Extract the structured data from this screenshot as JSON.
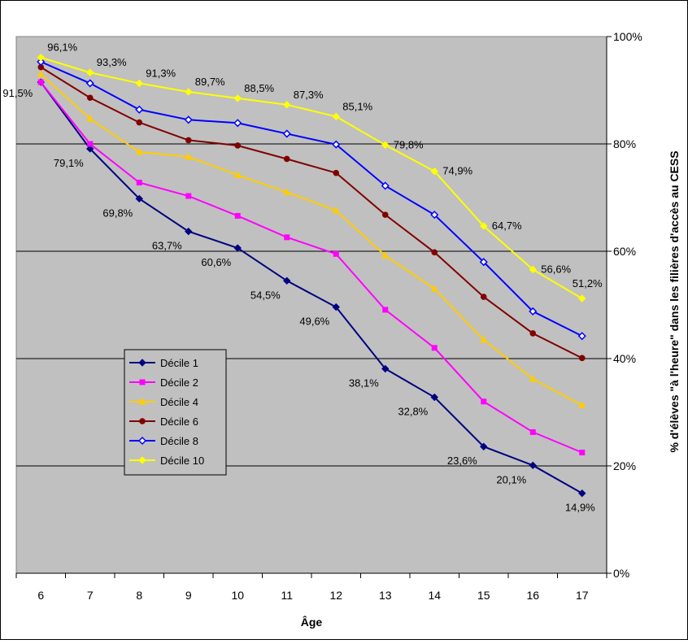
{
  "chart_data": {
    "type": "line",
    "title": "",
    "xlabel": "Âge",
    "ylabel": "% d'élèves \"à l'heure\" dans les filières d'accès au CESS",
    "x": [
      6,
      7,
      8,
      9,
      10,
      11,
      12,
      13,
      14,
      15,
      16,
      17
    ],
    "x_tick_labels": [
      "6",
      "7",
      "8",
      "9",
      "10",
      "11",
      "12",
      "13",
      "14",
      "15",
      "16",
      "17"
    ],
    "ylim": [
      0,
      100
    ],
    "y_tick_labels": [
      "0%",
      "20%",
      "40%",
      "60%",
      "80%",
      "100%"
    ],
    "y_axis_side": "right",
    "grid": true,
    "legend_position": "lower-left",
    "series": [
      {
        "name": "Décile 1",
        "color": "#000080",
        "marker": "diamond",
        "values": [
          91.5,
          79.1,
          69.8,
          63.7,
          60.6,
          54.5,
          49.6,
          38.1,
          32.8,
          23.6,
          20.1,
          14.9
        ],
        "labels": [
          "91,5%",
          "79,1%",
          "69,8%",
          "63,7%",
          "60,6%",
          "54,5%",
          "49,6%",
          "38,1%",
          "32,8%",
          "23,6%",
          "20,1%",
          "14,9%"
        ]
      },
      {
        "name": "Décile 2",
        "color": "#FF00FF",
        "marker": "square",
        "values": [
          91.5,
          80.0,
          72.8,
          70.3,
          66.6,
          62.6,
          59.5,
          49.1,
          42.0,
          32.0,
          26.3,
          22.5
        ]
      },
      {
        "name": "Décile 4",
        "color": "#FFCC00",
        "marker": "triangle",
        "values": [
          93.0,
          84.7,
          78.5,
          77.6,
          74.2,
          71.0,
          67.6,
          59.2,
          53.0,
          43.5,
          36.2,
          31.3
        ]
      },
      {
        "name": "Décile 6",
        "color": "#800000",
        "marker": "circle",
        "values": [
          94.3,
          88.6,
          84.0,
          80.7,
          79.7,
          77.2,
          74.6,
          66.8,
          59.8,
          51.5,
          44.7,
          40.1
        ]
      },
      {
        "name": "Décile 8",
        "color": "#0000FF",
        "marker": "diamond-open",
        "values": [
          95.3,
          91.3,
          86.4,
          84.5,
          83.9,
          81.9,
          79.9,
          72.2,
          66.8,
          58.0,
          48.8,
          44.2
        ]
      },
      {
        "name": "Décile 10",
        "color": "#FFFF00",
        "marker": "diamond",
        "values": [
          96.1,
          93.3,
          91.3,
          89.7,
          88.5,
          87.3,
          85.1,
          79.8,
          74.9,
          64.7,
          56.6,
          51.2
        ],
        "labels": [
          "96,1%",
          "93,3%",
          "91,3%",
          "89,7%",
          "88,5%",
          "87,3%",
          "85,1%",
          "79,8%",
          "74,9%",
          "64,7%",
          "56,6%",
          "51,2%"
        ]
      }
    ]
  },
  "colors": {
    "plot_background": "#C0C0C0",
    "page_background": "#FFFFFF",
    "gridline": "#000000"
  }
}
